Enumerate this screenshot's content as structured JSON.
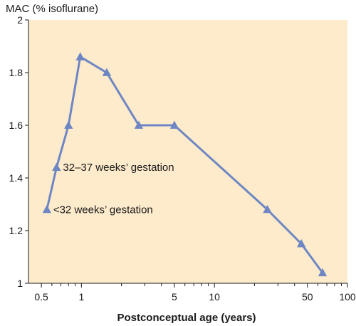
{
  "chart_data": {
    "type": "line",
    "ylabel": "MAC (% isoflurane)",
    "xlabel": "Postconceptual age (years)",
    "x_scale": "log",
    "xlim": [
      0.4,
      100
    ],
    "ylim": [
      1,
      2
    ],
    "x_ticks": [
      {
        "value": 0.5,
        "label": "0.5"
      },
      {
        "value": 1,
        "label": "1"
      },
      {
        "value": 5,
        "label": "5"
      },
      {
        "value": 10,
        "label": "10"
      },
      {
        "value": 50,
        "label": "50"
      },
      {
        "value": 100,
        "label": "100"
      }
    ],
    "y_ticks": [
      {
        "value": 1,
        "label": "1"
      },
      {
        "value": 1.2,
        "label": "1.2"
      },
      {
        "value": 1.4,
        "label": "1.4"
      },
      {
        "value": 1.6,
        "label": "1.6"
      },
      {
        "value": 1.8,
        "label": "1.8"
      },
      {
        "value": 2,
        "label": "2"
      }
    ],
    "grid": false,
    "series": [
      {
        "marker": "triangle",
        "color": "#6e86c4",
        "x": [
          0.55,
          0.65,
          0.8,
          0.98,
          1.55,
          2.7,
          5.0,
          25,
          45,
          65
        ],
        "y": [
          1.28,
          1.44,
          1.6,
          1.86,
          1.8,
          1.6,
          1.6,
          1.28,
          1.15,
          1.04
        ]
      }
    ],
    "annotations": [
      {
        "text": "32–37 weeks’ gestation",
        "x": 0.65,
        "y": 1.44
      },
      {
        "text": "<32 weeks’ gestation",
        "x": 0.55,
        "y": 1.28
      }
    ],
    "plot_background": "#fdebcb",
    "axis_color": "#1a1a1a"
  }
}
